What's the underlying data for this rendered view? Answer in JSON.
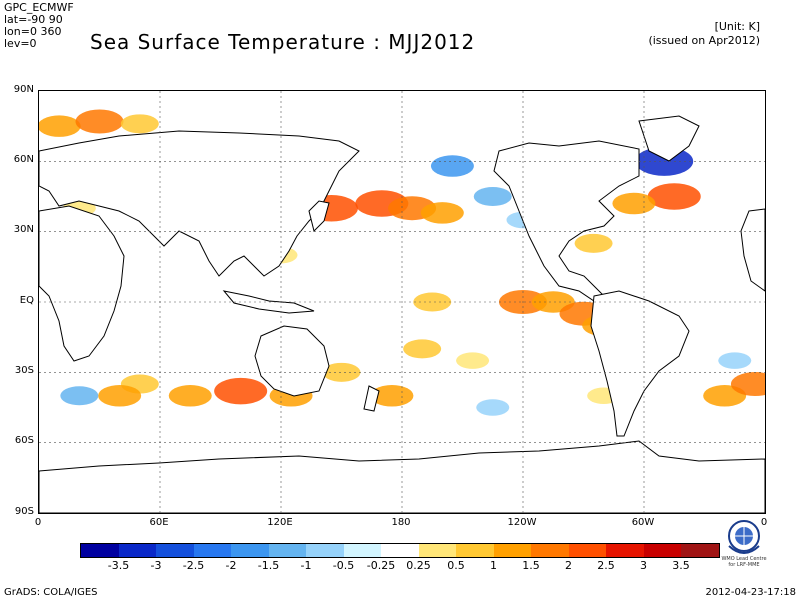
{
  "meta": {
    "line1": "GPC_ECMWF",
    "line2": "lat=-90 90",
    "line3": "lon=0 360",
    "line4": "lev=0"
  },
  "title": "Sea Surface Temperature : MJJ2012",
  "unit": "[Unit: K]",
  "issued": "(issued on Apr2012)",
  "lat_labels": [
    "90N",
    "60N",
    "30N",
    "EQ",
    "30S",
    "60S",
    "90S"
  ],
  "lon_labels": [
    "0",
    "60E",
    "120E",
    "180",
    "120W",
    "60W",
    "0"
  ],
  "colorbar": {
    "colors": [
      "#0000a0",
      "#0a28c8",
      "#1450dc",
      "#2878f0",
      "#3c96f0",
      "#64b4f0",
      "#96d2fa",
      "#d2f5ff",
      "#ffffff",
      "#ffe678",
      "#ffc832",
      "#ffa000",
      "#ff7800",
      "#ff5000",
      "#e61400",
      "#c80000",
      "#a01414"
    ],
    "labels": [
      "-3.5",
      "-3",
      "-2.5",
      "-2",
      "-1.5",
      "-1",
      "-0.5",
      "-0.25",
      "0.25",
      "0.5",
      "1",
      "1.5",
      "2",
      "2.5",
      "3",
      "3.5"
    ]
  },
  "footer_left": "GrADS: COLA/IGES",
  "footer_right": "2012-04-23-17:18",
  "logo_text": "WMO Lead Centre for LRF-MME",
  "anomalies": [
    {
      "lon": 10,
      "lat": 75,
      "value": 1.5
    },
    {
      "lon": 30,
      "lat": 77,
      "value": 2.0
    },
    {
      "lon": 50,
      "lat": 76,
      "value": 1.0
    },
    {
      "lon": 170,
      "lat": 42,
      "value": 2.5
    },
    {
      "lon": 185,
      "lat": 40,
      "value": 2.0
    },
    {
      "lon": 200,
      "lat": 38,
      "value": 1.5
    },
    {
      "lon": 145,
      "lat": 40,
      "value": 2.5
    },
    {
      "lon": 205,
      "lat": 58,
      "value": -1.5
    },
    {
      "lon": 225,
      "lat": 45,
      "value": -1.0
    },
    {
      "lon": 240,
      "lat": 35,
      "value": -0.5
    },
    {
      "lon": 240,
      "lat": 0,
      "value": 2.0
    },
    {
      "lon": 255,
      "lat": 0,
      "value": 1.5
    },
    {
      "lon": 270,
      "lat": -5,
      "value": 2.0
    },
    {
      "lon": 195,
      "lat": 0,
      "value": 1.0
    },
    {
      "lon": 280,
      "lat": -10,
      "value": 1.5
    },
    {
      "lon": 310,
      "lat": 60,
      "value": -3.0
    },
    {
      "lon": 315,
      "lat": 45,
      "value": 2.5
    },
    {
      "lon": 295,
      "lat": 42,
      "value": 1.5
    },
    {
      "lon": 275,
      "lat": 25,
      "value": 1.0
    },
    {
      "lon": 100,
      "lat": -38,
      "value": 2.5
    },
    {
      "lon": 75,
      "lat": -40,
      "value": 1.5
    },
    {
      "lon": 50,
      "lat": -35,
      "value": 1.0
    },
    {
      "lon": 40,
      "lat": -40,
      "value": 1.5
    },
    {
      "lon": 125,
      "lat": -40,
      "value": 1.5
    },
    {
      "lon": 150,
      "lat": -30,
      "value": 1.0
    },
    {
      "lon": 175,
      "lat": -40,
      "value": 1.5
    },
    {
      "lon": 190,
      "lat": -20,
      "value": 1.0
    },
    {
      "lon": 215,
      "lat": -25,
      "value": 0.5
    },
    {
      "lon": 225,
      "lat": -45,
      "value": -0.5
    },
    {
      "lon": 340,
      "lat": -40,
      "value": 1.5
    },
    {
      "lon": 355,
      "lat": -35,
      "value": 2.0
    },
    {
      "lon": 345,
      "lat": -25,
      "value": -0.5
    },
    {
      "lon": 20,
      "lat": -40,
      "value": -1.0
    },
    {
      "lon": 280,
      "lat": -40,
      "value": 0.5
    },
    {
      "lon": 20,
      "lat": 40,
      "value": 0.5
    },
    {
      "lon": 120,
      "lat": 20,
      "value": 0.5
    }
  ]
}
